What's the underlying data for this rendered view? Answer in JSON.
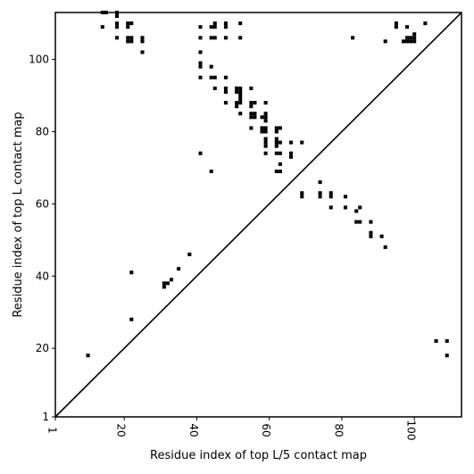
{
  "chart_data": {
    "type": "scatter",
    "xlabel": "Residue index of top L/5 contact map",
    "ylabel": "Residue index of top L contact map",
    "xlim": [
      1,
      113
    ],
    "ylim": [
      1,
      113
    ],
    "x_ticks": [
      1,
      20,
      40,
      60,
      80,
      100
    ],
    "y_ticks": [
      1,
      20,
      40,
      60,
      80,
      100
    ],
    "grid": false,
    "diagonal_line": true,
    "marker": "filled square",
    "marker_color": "#000000",
    "series": [
      {
        "points": [
          [
            14,
            113
          ],
          [
            15,
            113
          ],
          [
            18,
            113
          ],
          [
            18,
            112
          ],
          [
            14,
            109
          ],
          [
            18,
            110
          ],
          [
            18,
            109
          ],
          [
            21,
            110
          ],
          [
            22,
            110
          ],
          [
            21,
            109
          ],
          [
            18,
            106
          ],
          [
            21,
            106
          ],
          [
            22,
            106
          ],
          [
            21,
            105
          ],
          [
            22,
            105
          ],
          [
            25,
            106
          ],
          [
            25,
            105
          ],
          [
            25,
            102
          ],
          [
            41,
            109
          ],
          [
            44,
            109
          ],
          [
            45,
            109
          ],
          [
            45,
            110
          ],
          [
            48,
            110
          ],
          [
            48,
            109
          ],
          [
            52,
            110
          ],
          [
            41,
            106
          ],
          [
            44,
            106
          ],
          [
            45,
            106
          ],
          [
            48,
            106
          ],
          [
            52,
            106
          ],
          [
            41,
            102
          ],
          [
            41,
            99
          ],
          [
            41,
            98
          ],
          [
            44,
            98
          ],
          [
            41,
            95
          ],
          [
            44,
            95
          ],
          [
            45,
            95
          ],
          [
            48,
            95
          ],
          [
            45,
            92
          ],
          [
            48,
            92
          ],
          [
            48,
            91
          ],
          [
            51,
            92
          ],
          [
            52,
            92
          ],
          [
            51,
            91
          ],
          [
            52,
            91
          ],
          [
            52,
            90
          ],
          [
            55,
            92
          ],
          [
            52,
            89
          ],
          [
            51,
            88
          ],
          [
            52,
            88
          ],
          [
            51,
            87
          ],
          [
            48,
            88
          ],
          [
            52,
            85
          ],
          [
            55,
            88
          ],
          [
            56,
            88
          ],
          [
            55,
            87
          ],
          [
            59,
            88
          ],
          [
            55,
            85
          ],
          [
            56,
            85
          ],
          [
            55,
            84
          ],
          [
            56,
            84
          ],
          [
            58,
            84
          ],
          [
            59,
            85
          ],
          [
            59,
            84
          ],
          [
            59,
            83
          ],
          [
            55,
            81
          ],
          [
            58,
            81
          ],
          [
            59,
            81
          ],
          [
            58,
            80
          ],
          [
            59,
            80
          ],
          [
            62,
            81
          ],
          [
            63,
            81
          ],
          [
            62,
            80
          ],
          [
            59,
            78
          ],
          [
            59,
            77
          ],
          [
            59,
            76
          ],
          [
            62,
            78
          ],
          [
            62,
            77
          ],
          [
            63,
            77
          ],
          [
            62,
            76
          ],
          [
            66,
            77
          ],
          [
            69,
            77
          ],
          [
            41,
            74
          ],
          [
            59,
            74
          ],
          [
            62,
            74
          ],
          [
            63,
            74
          ],
          [
            66,
            74
          ],
          [
            66,
            73
          ],
          [
            63,
            71
          ],
          [
            44,
            69
          ],
          [
            62,
            69
          ],
          [
            63,
            69
          ],
          [
            74,
            66
          ],
          [
            69,
            63
          ],
          [
            69,
            62
          ],
          [
            74,
            63
          ],
          [
            74,
            62
          ],
          [
            77,
            63
          ],
          [
            77,
            62
          ],
          [
            81,
            62
          ],
          [
            77,
            59
          ],
          [
            81,
            59
          ],
          [
            85,
            59
          ],
          [
            84,
            58
          ],
          [
            84,
            55
          ],
          [
            85,
            55
          ],
          [
            88,
            55
          ],
          [
            88,
            52
          ],
          [
            88,
            51
          ],
          [
            91,
            51
          ],
          [
            92,
            48
          ],
          [
            38,
            46
          ],
          [
            35,
            42
          ],
          [
            22,
            41
          ],
          [
            33,
            39
          ],
          [
            31,
            38
          ],
          [
            32,
            38
          ],
          [
            31,
            37
          ],
          [
            22,
            28
          ],
          [
            10,
            18
          ],
          [
            83,
            106
          ],
          [
            92,
            105
          ],
          [
            95,
            110
          ],
          [
            95,
            109
          ],
          [
            98,
            109
          ],
          [
            103,
            110
          ],
          [
            98,
            106
          ],
          [
            99,
            106
          ],
          [
            100,
            107
          ],
          [
            100,
            106
          ],
          [
            97,
            105
          ],
          [
            98,
            105
          ],
          [
            99,
            105
          ],
          [
            100,
            105
          ],
          [
            106,
            22
          ],
          [
            109,
            22
          ],
          [
            109,
            18
          ]
        ]
      }
    ]
  }
}
